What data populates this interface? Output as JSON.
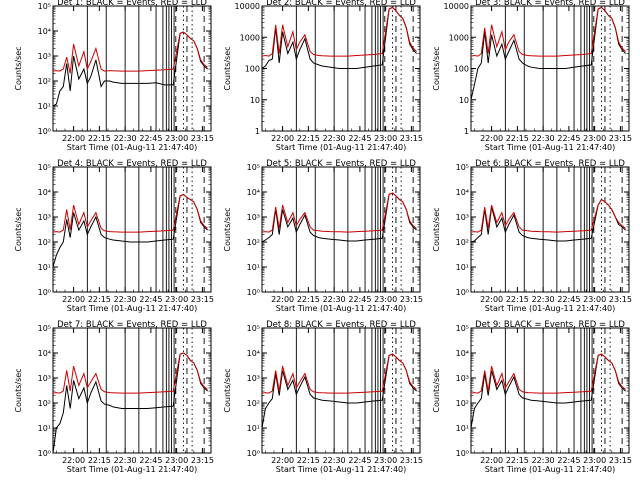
{
  "chart_data": [
    {
      "panel": "det1",
      "type": "line",
      "title": "Det 1: BLACK = Events, RED = LLD",
      "xlabel": "Start Time (01-Aug-11 21:47:40)",
      "ylabel": "Counts/sec",
      "y_scale": "log",
      "ylim": [
        1,
        100000
      ],
      "y_ticks": [
        "10⁰",
        "10¹",
        "10²",
        "10³",
        "10⁴",
        "10⁵"
      ],
      "x_ticks": [
        "22:00",
        "22:15",
        "22:30",
        "22:45",
        "23:00",
        "23:15"
      ],
      "x_minutes": [
        0,
        2,
        4,
        6,
        8,
        10,
        12,
        15,
        18,
        20,
        22,
        25,
        28,
        30,
        33,
        35,
        40,
        45,
        50,
        55,
        60,
        65,
        70,
        74,
        76,
        78,
        80,
        82,
        84,
        86,
        88,
        90
      ],
      "series": [
        {
          "color": "#000000",
          "values": [
            10,
            12,
            40,
            60,
            500,
            40,
            1000,
            120,
            300,
            80,
            150,
            700,
            60,
            100,
            100,
            90,
            80,
            80,
            80,
            80,
            85,
            70,
            70,
            8000,
            9000,
            7000,
            5000,
            4000,
            2000,
            600,
            400,
            300
          ]
        },
        {
          "color": "#cc0000",
          "values": [
            250,
            260,
            250,
            300,
            900,
            200,
            3000,
            400,
            1500,
            300,
            600,
            2000,
            300,
            250,
            260,
            255,
            250,
            250,
            250,
            260,
            270,
            280,
            300,
            8000,
            9000,
            7000,
            5000,
            4000,
            2000,
            700,
            450,
            350
          ]
        }
      ]
    },
    {
      "panel": "det2",
      "type": "line",
      "title": "Det 2: BLACK = Events, RED = LLD",
      "xlabel": "Start Time (01-Aug-11 21:47:40)",
      "ylabel": "Counts/sec",
      "y_scale": "log",
      "ylim": [
        1,
        10000
      ],
      "y_ticks": [
        "1",
        "10",
        "100",
        "1000",
        "10000"
      ],
      "x_ticks": [
        "22:00",
        "22:15",
        "22:30",
        "22:45",
        "23:00",
        "23:15"
      ],
      "x_minutes": [
        0,
        2,
        4,
        6,
        8,
        10,
        12,
        15,
        18,
        20,
        22,
        25,
        28,
        30,
        33,
        35,
        40,
        45,
        50,
        55,
        60,
        65,
        70,
        74,
        76,
        78,
        80,
        82,
        84,
        86,
        88,
        90
      ],
      "series": [
        {
          "color": "#000000",
          "values": [
            100,
            120,
            180,
            200,
            2000,
            150,
            1500,
            300,
            700,
            200,
            400,
            900,
            200,
            150,
            130,
            120,
            110,
            100,
            100,
            100,
            110,
            120,
            130,
            8000,
            9000,
            7000,
            5000,
            4000,
            2000,
            600,
            400,
            300
          ]
        },
        {
          "color": "#cc0000",
          "values": [
            250,
            260,
            250,
            300,
            2500,
            300,
            2500,
            500,
            1500,
            400,
            700,
            1200,
            350,
            280,
            260,
            255,
            250,
            250,
            250,
            260,
            270,
            280,
            300,
            8000,
            9000,
            7000,
            5000,
            4000,
            2000,
            700,
            450,
            350
          ]
        }
      ]
    },
    {
      "panel": "det3",
      "type": "line",
      "title": "Det 3: BLACK = Events, RED = LLD",
      "xlabel": "Start Time (01-Aug-11 21:47:40)",
      "ylabel": "Counts/sec",
      "y_scale": "log",
      "ylim": [
        1,
        10000
      ],
      "y_ticks": [
        "1",
        "10",
        "100",
        "1000",
        "10000"
      ],
      "x_ticks": [
        "22:00",
        "22:15",
        "22:30",
        "22:45",
        "23:00",
        "23:15"
      ],
      "x_minutes": [
        0,
        2,
        4,
        6,
        8,
        10,
        12,
        15,
        18,
        20,
        22,
        25,
        28,
        30,
        33,
        35,
        40,
        45,
        50,
        55,
        60,
        65,
        70,
        74,
        76,
        78,
        80,
        82,
        84,
        86,
        88,
        90
      ],
      "series": [
        {
          "color": "#000000",
          "values": [
            10,
            30,
            100,
            150,
            1500,
            150,
            1200,
            250,
            600,
            200,
            350,
            800,
            200,
            150,
            120,
            110,
            100,
            100,
            100,
            100,
            110,
            120,
            130,
            8000,
            9000,
            7000,
            5000,
            4000,
            2000,
            600,
            400,
            300
          ]
        },
        {
          "color": "#cc0000",
          "values": [
            250,
            260,
            250,
            300,
            2000,
            300,
            2500,
            500,
            1500,
            400,
            700,
            1200,
            350,
            280,
            260,
            255,
            250,
            250,
            250,
            260,
            270,
            280,
            300,
            8000,
            9000,
            7000,
            5000,
            4000,
            2000,
            700,
            450,
            350
          ]
        }
      ]
    },
    {
      "panel": "det4",
      "type": "line",
      "title": "Det 4: BLACK = Events, RED = LLD",
      "xlabel": "Start Time (01-Aug-11 21:47:40)",
      "ylabel": "Counts/sec",
      "y_scale": "log",
      "ylim": [
        1,
        100000
      ],
      "y_ticks": [
        "10⁰",
        "10¹",
        "10²",
        "10³",
        "10⁴",
        "10⁵"
      ],
      "x_ticks": [
        "22:00",
        "22:15",
        "22:30",
        "22:45",
        "23:00",
        "23:15"
      ],
      "x_minutes": [
        0,
        2,
        4,
        6,
        8,
        10,
        12,
        15,
        18,
        20,
        22,
        25,
        28,
        30,
        33,
        35,
        40,
        45,
        50,
        55,
        60,
        65,
        70,
        74,
        76,
        78,
        80,
        82,
        84,
        86,
        88,
        90
      ],
      "series": [
        {
          "color": "#000000",
          "values": [
            10,
            30,
            60,
            100,
            800,
            150,
            1500,
            300,
            700,
            200,
            400,
            1000,
            200,
            150,
            130,
            120,
            110,
            100,
            100,
            100,
            110,
            120,
            130,
            7000,
            8000,
            6000,
            5000,
            4000,
            2000,
            600,
            400,
            300
          ]
        },
        {
          "color": "#cc0000",
          "values": [
            250,
            260,
            250,
            300,
            2000,
            300,
            3000,
            500,
            1500,
            400,
            700,
            1500,
            350,
            280,
            260,
            255,
            250,
            250,
            250,
            260,
            270,
            280,
            300,
            7000,
            8000,
            6000,
            5000,
            4000,
            2000,
            700,
            450,
            350
          ]
        }
      ]
    },
    {
      "panel": "det5",
      "type": "line",
      "title": "Det 5: BLACK = Events, RED = LLD",
      "xlabel": "Start Time (01-Aug-11 21:47:40)",
      "ylabel": "Counts/sec",
      "y_scale": "log",
      "ylim": [
        1,
        100000
      ],
      "y_ticks": [
        "10⁰",
        "10¹",
        "10²",
        "10³",
        "10⁴",
        "10⁵"
      ],
      "x_ticks": [
        "22:00",
        "22:15",
        "22:30",
        "22:45",
        "23:00",
        "23:15"
      ],
      "x_minutes": [
        0,
        2,
        4,
        6,
        8,
        10,
        12,
        15,
        18,
        20,
        22,
        25,
        28,
        30,
        33,
        35,
        40,
        45,
        50,
        55,
        60,
        65,
        70,
        74,
        76,
        78,
        80,
        82,
        84,
        86,
        88,
        90
      ],
      "series": [
        {
          "color": "#000000",
          "values": [
            100,
            120,
            150,
            200,
            2000,
            200,
            2000,
            400,
            900,
            250,
            500,
            1200,
            250,
            180,
            150,
            140,
            130,
            120,
            110,
            110,
            120,
            130,
            140,
            8000,
            9000,
            7000,
            5000,
            4000,
            2000,
            600,
            400,
            300
          ]
        },
        {
          "color": "#cc0000",
          "values": [
            250,
            260,
            250,
            300,
            2500,
            350,
            3000,
            600,
            1500,
            450,
            800,
            1500,
            400,
            300,
            280,
            270,
            260,
            255,
            250,
            260,
            270,
            280,
            300,
            8000,
            9000,
            7000,
            5000,
            4000,
            2000,
            700,
            450,
            350
          ]
        }
      ]
    },
    {
      "panel": "det6",
      "type": "line",
      "title": "Det 6: BLACK = Events, RED = LLD",
      "xlabel": "Start Time (01-Aug-11 21:47:40)",
      "ylabel": "Counts/sec",
      "y_scale": "log",
      "ylim": [
        1,
        100000
      ],
      "y_ticks": [
        "10⁰",
        "10¹",
        "10²",
        "10³",
        "10⁴",
        "10⁵"
      ],
      "x_ticks": [
        "22:00",
        "22:15",
        "22:30",
        "22:45",
        "23:00",
        "23:15"
      ],
      "x_minutes": [
        0,
        2,
        4,
        6,
        8,
        10,
        12,
        15,
        18,
        20,
        22,
        25,
        28,
        30,
        33,
        35,
        40,
        45,
        50,
        55,
        60,
        65,
        70,
        74,
        76,
        78,
        80,
        82,
        84,
        86,
        88,
        90
      ],
      "series": [
        {
          "color": "#000000",
          "values": [
            100,
            110,
            150,
            200,
            2000,
            200,
            2500,
            400,
            900,
            250,
            500,
            1200,
            250,
            180,
            150,
            140,
            130,
            120,
            110,
            110,
            120,
            130,
            140,
            3000,
            5000,
            4000,
            3000,
            2000,
            1000,
            500,
            400,
            300
          ]
        },
        {
          "color": "#cc0000",
          "values": [
            250,
            260,
            250,
            300,
            2500,
            350,
            3000,
            600,
            1500,
            450,
            800,
            1500,
            400,
            300,
            280,
            270,
            260,
            255,
            250,
            260,
            270,
            280,
            300,
            3000,
            5000,
            4000,
            3000,
            2000,
            1000,
            600,
            450,
            350
          ]
        }
      ]
    },
    {
      "panel": "det7",
      "type": "line",
      "title": "Det 7: BLACK = Events, RED = LLD",
      "xlabel": "Start Time (01-Aug-11 21:47:40)",
      "ylabel": "Counts/sec",
      "y_scale": "log",
      "ylim": [
        1,
        100000
      ],
      "y_ticks": [
        "10⁰",
        "10¹",
        "10²",
        "10³",
        "10⁴",
        "10⁵"
      ],
      "x_ticks": [
        "22:00",
        "22:15",
        "22:30",
        "22:45",
        "23:00",
        "23:15"
      ],
      "x_minutes": [
        0,
        2,
        4,
        6,
        8,
        10,
        12,
        15,
        18,
        20,
        22,
        25,
        28,
        30,
        33,
        35,
        40,
        45,
        50,
        55,
        60,
        65,
        70,
        74,
        76,
        78,
        80,
        82,
        84,
        86,
        88,
        90
      ],
      "series": [
        {
          "color": "#000000",
          "values": [
            1,
            10,
            15,
            40,
            500,
            60,
            800,
            150,
            400,
            100,
            250,
            700,
            120,
            90,
            80,
            70,
            60,
            60,
            60,
            60,
            65,
            70,
            75,
            9000,
            10000,
            8000,
            5000,
            4000,
            2000,
            600,
            400,
            300
          ]
        },
        {
          "color": "#cc0000",
          "values": [
            250,
            260,
            250,
            300,
            2000,
            300,
            3000,
            500,
            1500,
            400,
            700,
            1500,
            350,
            280,
            260,
            255,
            250,
            250,
            250,
            260,
            270,
            280,
            300,
            9000,
            10000,
            8000,
            5000,
            4000,
            2000,
            700,
            450,
            350
          ]
        }
      ]
    },
    {
      "panel": "det8",
      "type": "line",
      "title": "Det 8: BLACK = Events, RED = LLD",
      "xlabel": "Start Time (01-Aug-11 21:47:40)",
      "ylabel": "Counts/sec",
      "y_scale": "log",
      "ylim": [
        1,
        100000
      ],
      "y_ticks": [
        "10⁰",
        "10¹",
        "10²",
        "10³",
        "10⁴",
        "10⁵"
      ],
      "x_ticks": [
        "22:00",
        "22:15",
        "22:30",
        "22:45",
        "23:00",
        "23:15"
      ],
      "x_minutes": [
        0,
        2,
        4,
        6,
        8,
        10,
        12,
        15,
        18,
        20,
        22,
        25,
        28,
        30,
        33,
        35,
        40,
        45,
        50,
        55,
        60,
        65,
        70,
        74,
        76,
        78,
        80,
        82,
        84,
        86,
        88,
        90
      ],
      "series": [
        {
          "color": "#000000",
          "values": [
            10,
            60,
            100,
            150,
            1500,
            200,
            2000,
            350,
            800,
            220,
            450,
            1100,
            220,
            160,
            140,
            130,
            120,
            110,
            100,
            100,
            110,
            120,
            130,
            8000,
            9000,
            7000,
            5000,
            4000,
            2000,
            600,
            400,
            300
          ]
        },
        {
          "color": "#cc0000",
          "values": [
            250,
            260,
            250,
            300,
            2000,
            300,
            3000,
            500,
            1500,
            400,
            700,
            1500,
            350,
            280,
            260,
            255,
            250,
            250,
            250,
            260,
            270,
            280,
            300,
            8000,
            9000,
            7000,
            5000,
            4000,
            2000,
            700,
            450,
            350
          ]
        }
      ]
    },
    {
      "panel": "det9",
      "type": "line",
      "title": "Det 9: BLACK = Events, RED = LLD",
      "xlabel": "Start Time (01-Aug-11 21:47:40)",
      "ylabel": "Counts/sec",
      "y_scale": "log",
      "ylim": [
        1,
        100000
      ],
      "y_ticks": [
        "10⁰",
        "10¹",
        "10²",
        "10³",
        "10⁴",
        "10⁵"
      ],
      "x_ticks": [
        "22:00",
        "22:15",
        "22:30",
        "22:45",
        "23:00",
        "23:15"
      ],
      "x_minutes": [
        0,
        2,
        4,
        6,
        8,
        10,
        12,
        15,
        18,
        20,
        22,
        25,
        28,
        30,
        33,
        35,
        40,
        45,
        50,
        55,
        60,
        65,
        70,
        74,
        76,
        78,
        80,
        82,
        84,
        86,
        88,
        90
      ],
      "series": [
        {
          "color": "#000000",
          "values": [
            10,
            60,
            100,
            150,
            1500,
            200,
            2000,
            350,
            800,
            220,
            450,
            1100,
            220,
            160,
            140,
            130,
            120,
            110,
            100,
            100,
            110,
            120,
            130,
            8000,
            9000,
            7000,
            5000,
            4000,
            2000,
            600,
            400,
            300
          ]
        },
        {
          "color": "#cc0000",
          "values": [
            250,
            260,
            250,
            300,
            2000,
            300,
            3000,
            500,
            1500,
            400,
            700,
            1500,
            350,
            280,
            260,
            255,
            250,
            250,
            250,
            260,
            270,
            280,
            300,
            8000,
            9000,
            7000,
            5000,
            4000,
            2000,
            700,
            450,
            350
          ]
        }
      ]
    }
  ]
}
